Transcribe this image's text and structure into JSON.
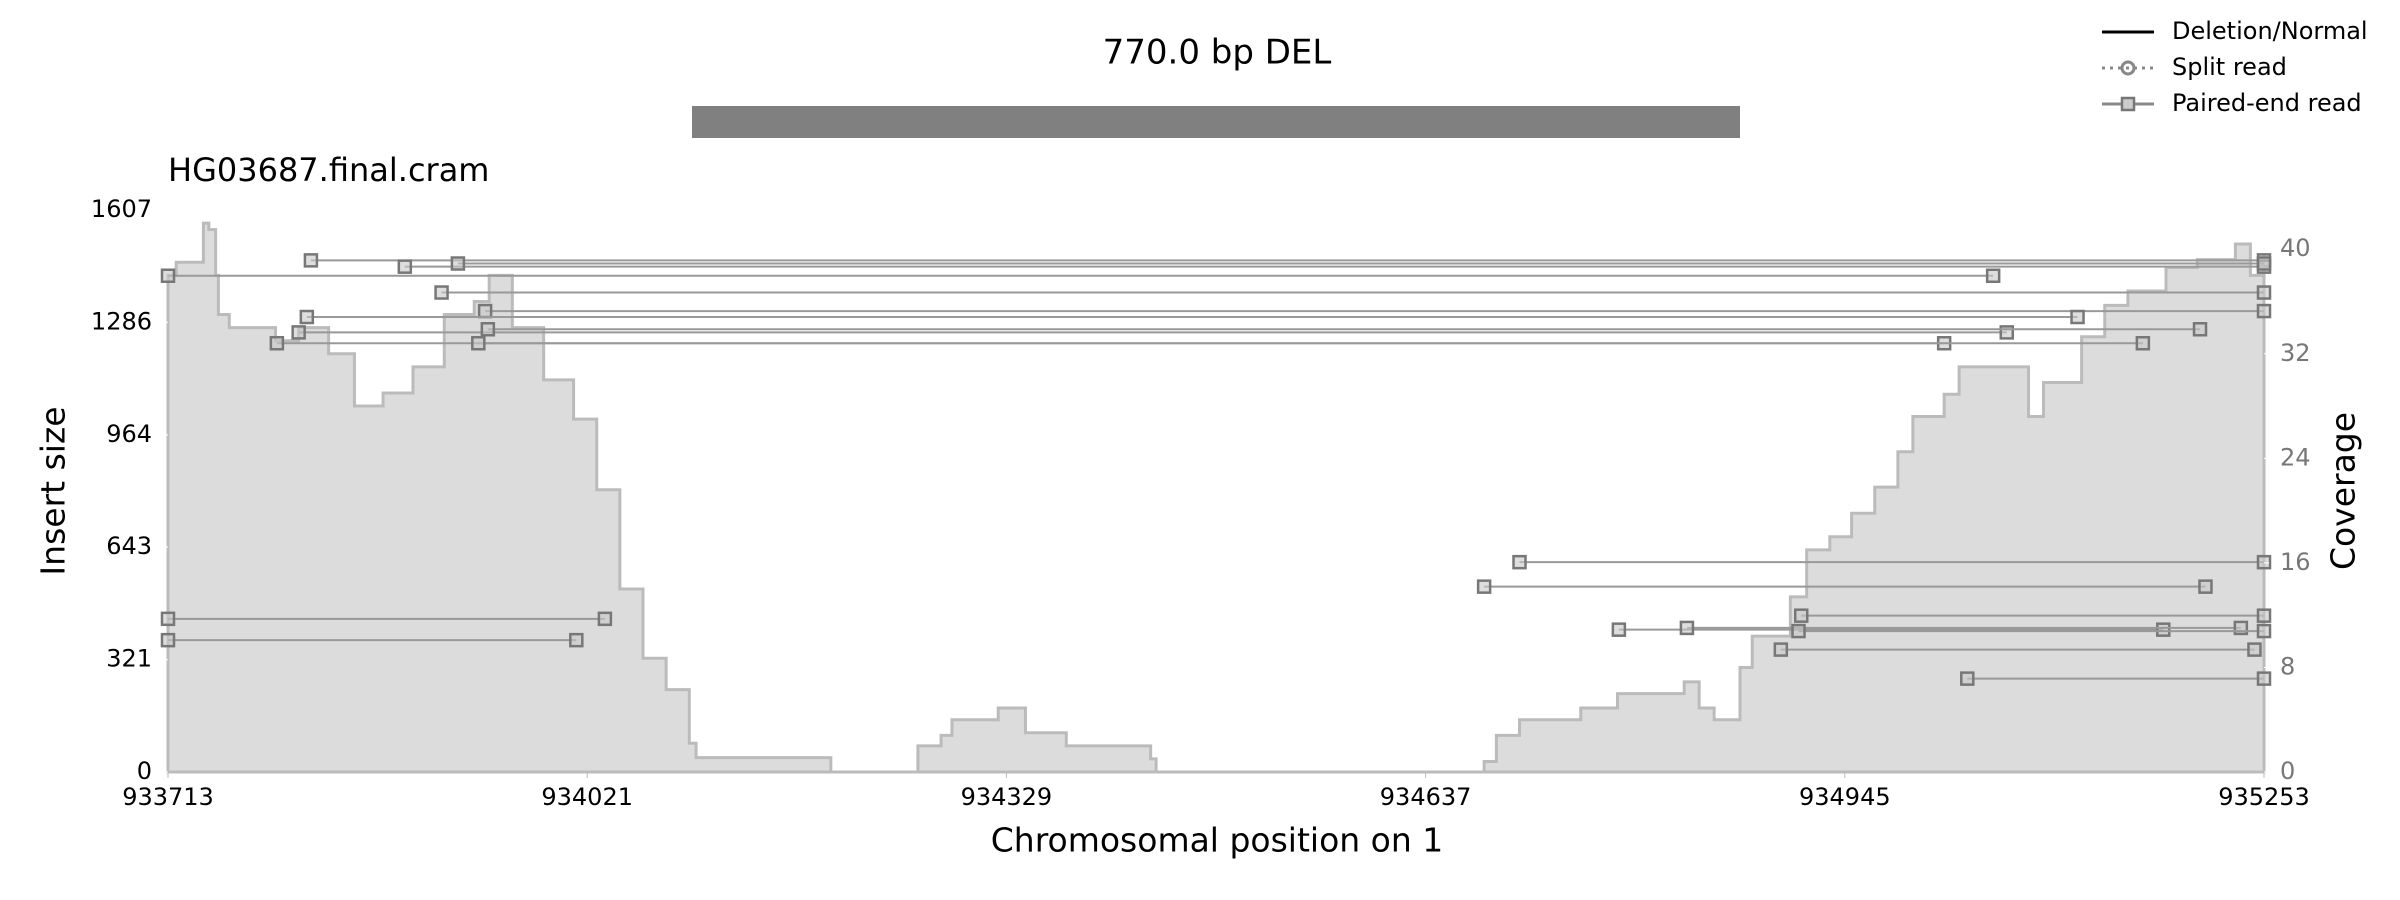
{
  "chart_data": {
    "type": "samplot",
    "title": "770.0 bp DEL",
    "sample": "HG03687.final.cram",
    "xlabel": "Chromosomal position on 1",
    "ylabel": "Insert size",
    "y2label": "Coverage",
    "xlim": [
      933713,
      935253
    ],
    "xticks": [
      933713,
      934021,
      934329,
      934637,
      934945,
      935253
    ],
    "ylim": [
      0,
      1607
    ],
    "yticks": [
      0,
      321,
      643,
      964,
      1286,
      1607
    ],
    "y2lim": [
      0,
      43
    ],
    "y2ticks": [
      0,
      8,
      16,
      24,
      32,
      40
    ],
    "legend": [
      "Deletion/Normal",
      "Split read",
      "Paired-end read"
    ],
    "deletion": {
      "start": 934098,
      "end": 934868,
      "color": "#808080"
    },
    "coverage": {
      "axis": "y2",
      "color": "#dcdcdc",
      "x": [
        933713,
        933719,
        933735,
        933739,
        933743,
        933748,
        933750,
        933758,
        933775,
        933792,
        933809,
        933831,
        933850,
        933871,
        933893,
        933916,
        933938,
        933949,
        933966,
        933989,
        934011,
        934028,
        934045,
        934062,
        934079,
        934096,
        934101,
        934200,
        934264,
        934281,
        934289,
        934323,
        934343,
        934373,
        934435,
        934439,
        934680,
        934689,
        934706,
        934751,
        934778,
        934827,
        934838,
        934849,
        934868,
        934877,
        934905,
        934917,
        934934,
        934950,
        934967,
        934984,
        934995,
        935018,
        935029,
        935046,
        935080,
        935091,
        935119,
        935136,
        935153,
        935181,
        935204,
        935232,
        935243,
        935253
      ],
      "values": [
        38,
        39,
        39,
        42,
        41.5,
        38,
        35,
        34,
        34,
        33,
        34,
        32,
        28,
        29,
        31,
        35,
        36,
        38,
        34,
        30,
        27,
        21.6,
        14,
        8.7,
        6.3,
        2.2,
        1.1,
        0,
        2,
        2.8,
        4,
        4.9,
        3,
        2,
        1,
        0,
        0.8,
        2.8,
        4,
        4.9,
        6,
        6.9,
        4.9,
        4,
        8,
        10.4,
        13.4,
        17,
        18,
        19.8,
        21.8,
        24.5,
        27.2,
        28.9,
        31,
        31,
        27.2,
        29.8,
        33.3,
        35.7,
        36.8,
        38.6,
        39.2,
        40.4,
        38,
        39.5
      ]
    },
    "paired_reads": {
      "color": "#999999",
      "starts": [
        933818,
        933887,
        933926,
        933713,
        933914,
        933946,
        933815,
        933809,
        933948,
        933793,
        933941,
        933713,
        933713,
        934706,
        934680,
        934913,
        934779,
        934829,
        934911,
        934898,
        935035
      ],
      "ends": [
        935253,
        935253,
        935253,
        935054,
        935253,
        935253,
        935116,
        935064,
        935206,
        935018,
        935164,
        934034,
        934013,
        935253,
        935210,
        935253,
        935179,
        935236,
        935253,
        935246,
        935253
      ],
      "values": [
        1463,
        1445,
        1454,
        1419,
        1371,
        1318,
        1301,
        1257,
        1266,
        1226,
        1226,
        438,
        377,
        600,
        530,
        447,
        407,
        412,
        403,
        350,
        267
      ]
    }
  }
}
